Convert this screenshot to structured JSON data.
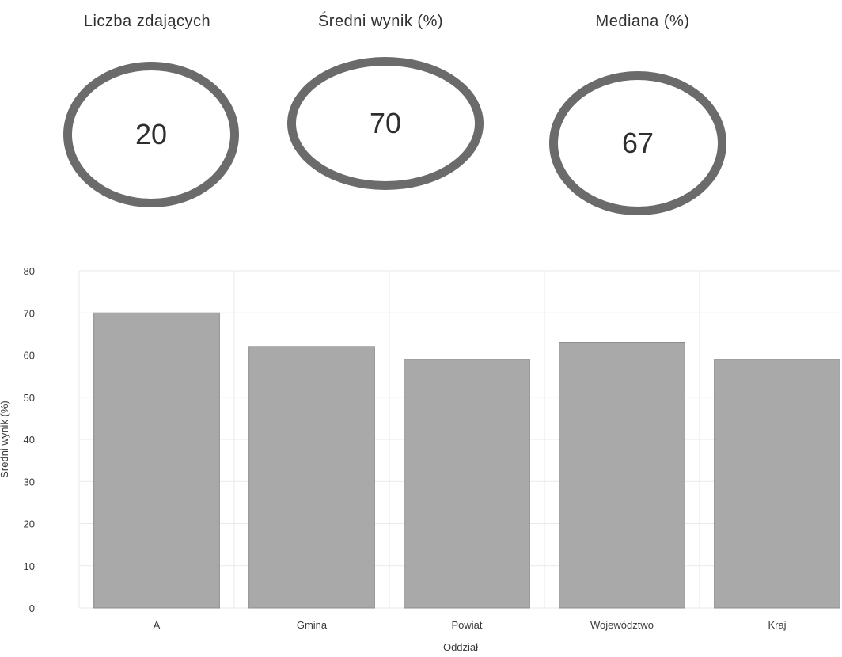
{
  "stats": [
    {
      "label": "Liczba zdających",
      "value": "20"
    },
    {
      "label": "Średni wynik (%)",
      "value": "70"
    },
    {
      "label": "Mediana (%)",
      "value": "67"
    }
  ],
  "colors": {
    "bar": "#a9a9a9",
    "ring": "#6b6b6b",
    "grid": "#e9e9e9"
  },
  "chart_data": {
    "type": "bar",
    "categories": [
      "A",
      "Gmina",
      "Powiat",
      "Województwo",
      "Kraj"
    ],
    "values": [
      70,
      62,
      59,
      63,
      59
    ],
    "xlabel": "Oddział",
    "ylabel": "Średni wynik (%)",
    "ylim": [
      0,
      80
    ],
    "yticks": [
      0,
      10,
      20,
      30,
      40,
      50,
      60,
      70,
      80
    ],
    "grid": true
  }
}
